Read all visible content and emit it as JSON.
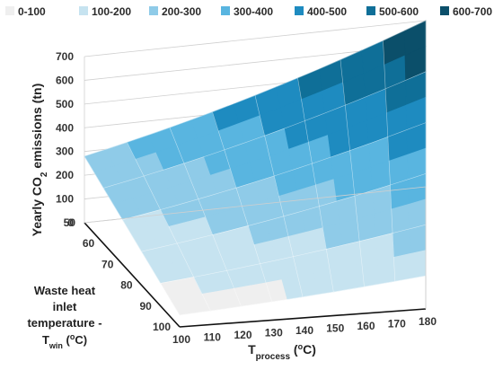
{
  "chart_data": {
    "type": "surface",
    "legend": {
      "placement": "top",
      "entries": [
        {
          "label": "0-100",
          "color": "#efefef"
        },
        {
          "label": "100-200",
          "color": "#c6e3f0"
        },
        {
          "label": "200-300",
          "color": "#8fcbe8"
        },
        {
          "label": "300-400",
          "color": "#59b5e0"
        },
        {
          "label": "400-500",
          "color": "#1e8bc0"
        },
        {
          "label": "500-600",
          "color": "#0f6f98"
        },
        {
          "label": "600-700",
          "color": "#0b4f6a"
        }
      ]
    },
    "z_axis": {
      "title_main": "Yearly CO",
      "title_sub": "2",
      "title_rest": " emissions (tn)",
      "ticks": [
        "0",
        "100",
        "200",
        "300",
        "400",
        "500",
        "600",
        "700"
      ],
      "range": [
        0,
        700
      ]
    },
    "x_axis": {
      "title_main": "T",
      "title_sub": "process",
      "title_rest": " (",
      "title_sup": "o",
      "title_end": "C)",
      "ticks": [
        "100",
        "110",
        "120",
        "130",
        "140",
        "150",
        "160",
        "170",
        "180"
      ],
      "range": [
        100,
        180
      ]
    },
    "y_axis": {
      "title_lines": [
        "Waste heat",
        "inlet",
        "temperature -"
      ],
      "title_last_main": "T",
      "title_last_sub": "win",
      "title_last_rest": " (",
      "title_last_sup": "o",
      "title_last_end": "C)",
      "ticks": [
        "50",
        "60",
        "70",
        "80",
        "90",
        "100"
      ],
      "range": [
        50,
        100
      ]
    },
    "surface_corners": {
      "Tprocess_100_Twin_50": 280,
      "Tprocess_100_Twin_100": 50,
      "Tprocess_180_Twin_50": 700,
      "Tprocess_180_Twin_100": 140
    }
  }
}
